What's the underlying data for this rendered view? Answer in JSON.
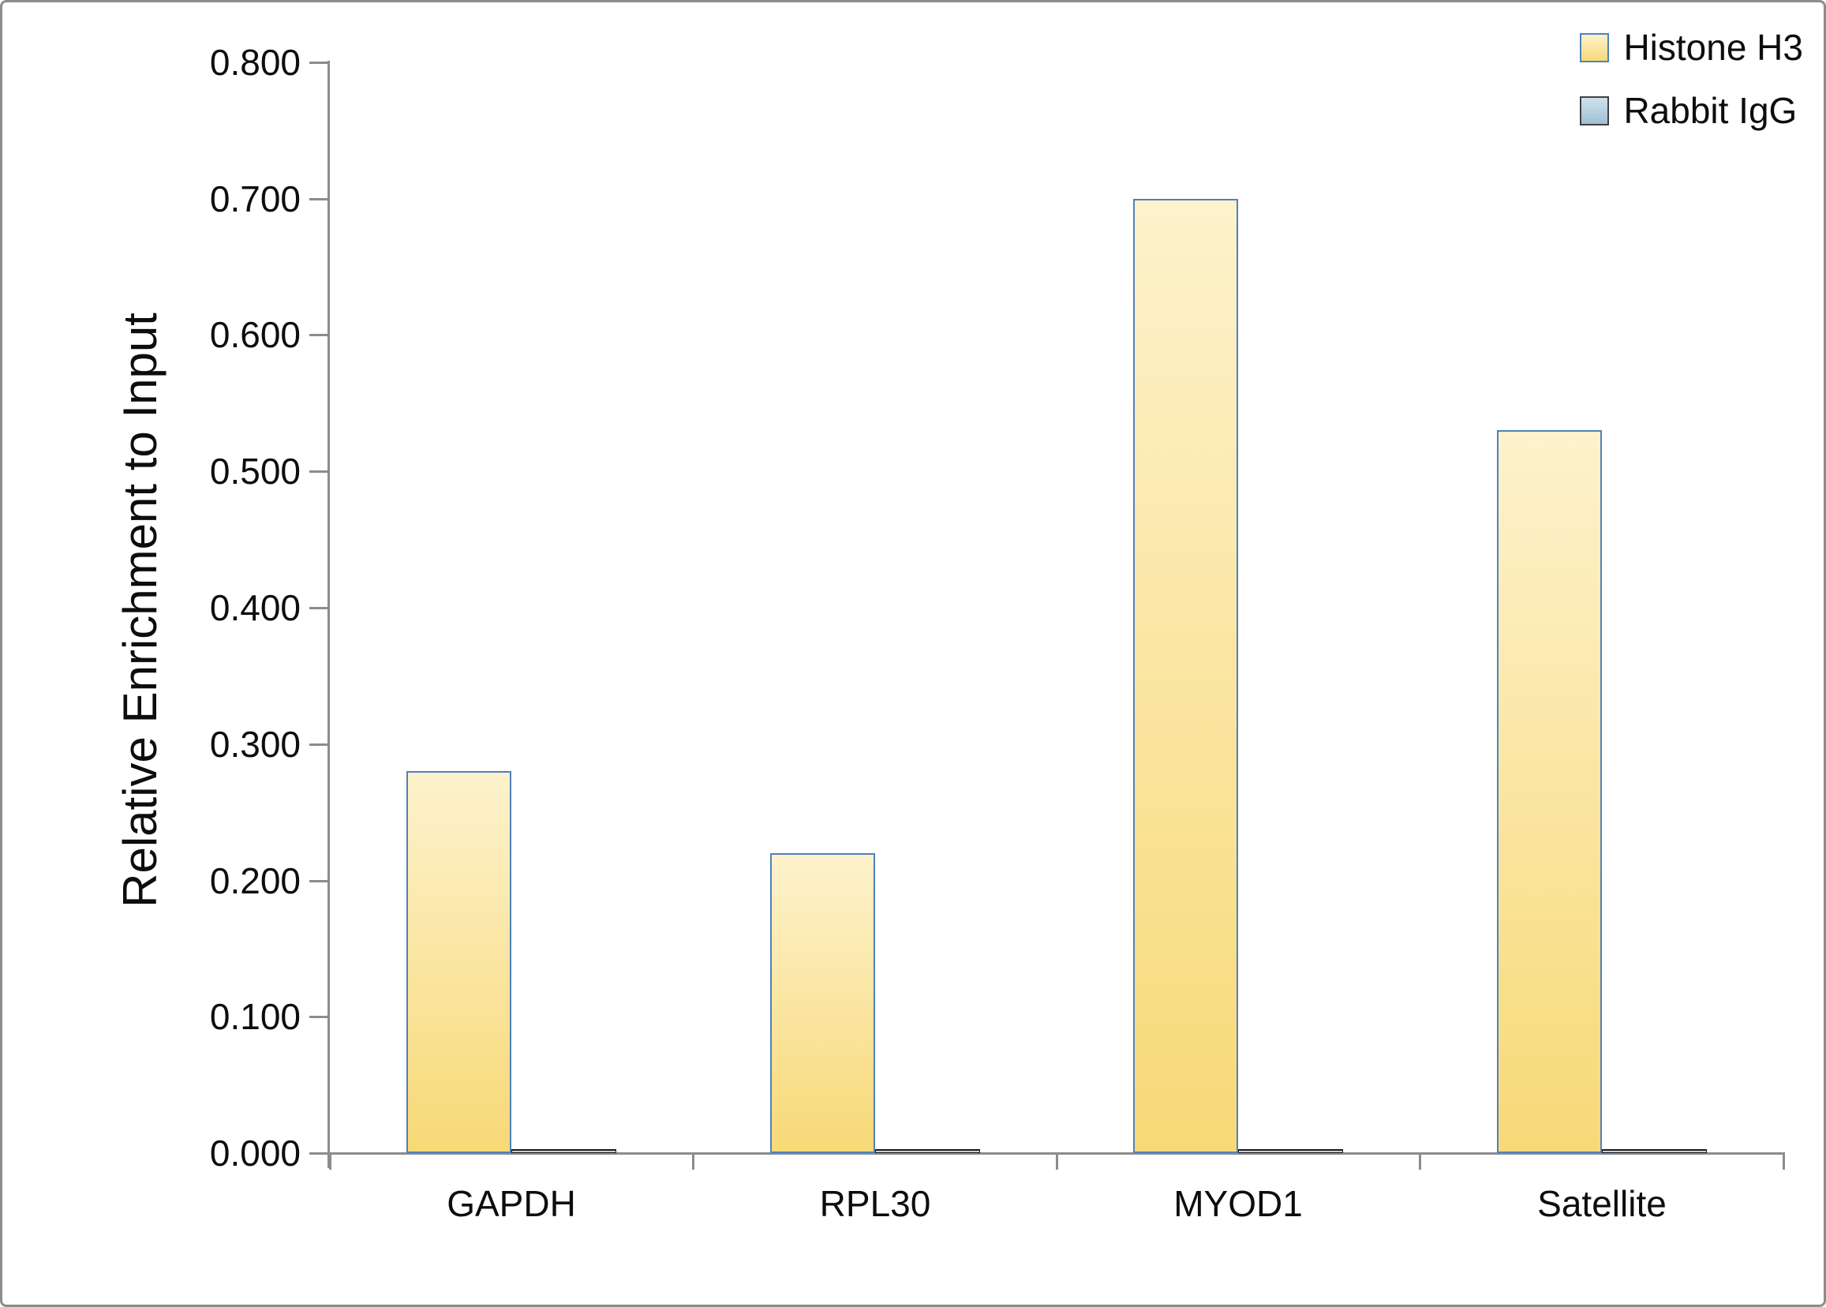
{
  "chart_data": {
    "type": "bar",
    "title": "",
    "xlabel": "",
    "ylabel": "Relative Enrichment to Input",
    "categories": [
      "GAPDH",
      "RPL30",
      "MYOD1",
      "Satellite"
    ],
    "series": [
      {
        "name": "Histone H3",
        "values": [
          0.28,
          0.22,
          0.7,
          0.53
        ],
        "fill_top": "#fdf2cc",
        "fill_bottom": "#f8d977",
        "border_color": "#4f81bd"
      },
      {
        "name": "Rabbit IgG",
        "values": [
          0.003,
          0.003,
          0.003,
          0.003
        ],
        "fill_top": "#cfe2ee",
        "fill_bottom": "#9fc0d3",
        "border_color": "#1a1a1a"
      }
    ],
    "ylim": [
      0,
      0.8
    ],
    "ytick_step": 0.1,
    "ytick_labels": [
      "0.000",
      "0.100",
      "0.200",
      "0.300",
      "0.400",
      "0.500",
      "0.600",
      "0.700",
      "0.800"
    ],
    "grid": false,
    "legend_position": "top-right",
    "axis_color": "#8c8c8c",
    "text_color": "#0d0d0d"
  }
}
